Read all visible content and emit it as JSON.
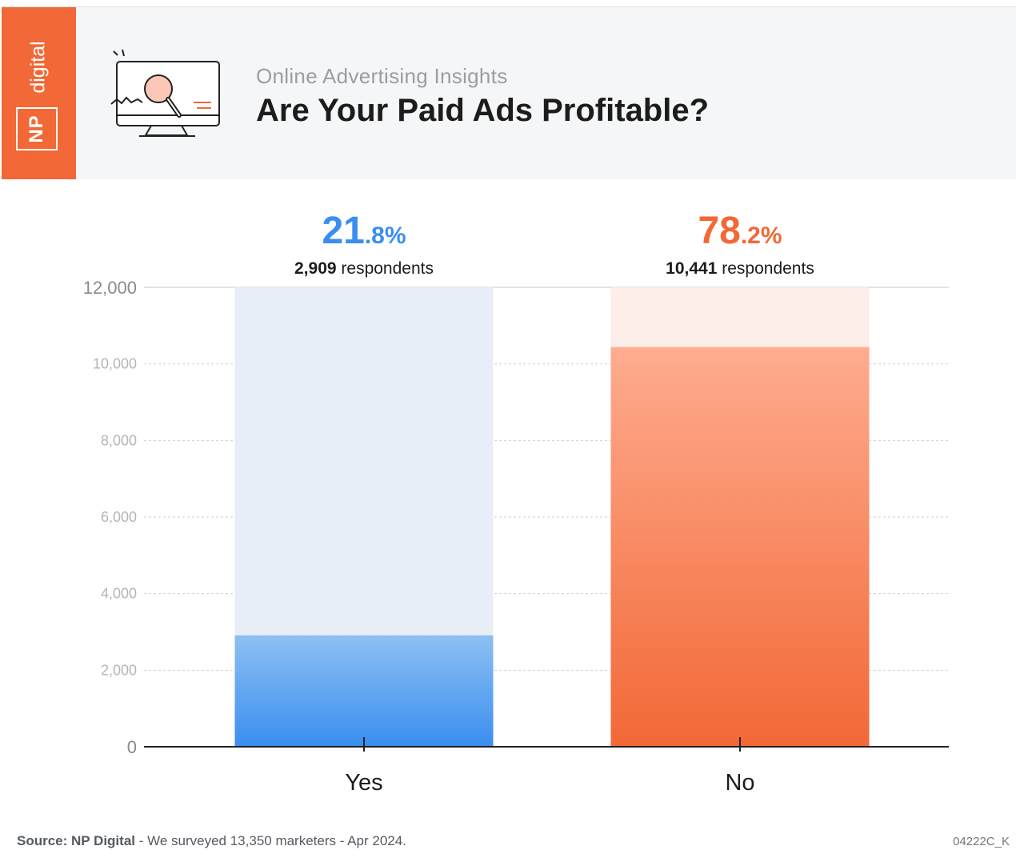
{
  "header": {
    "brand_np": "NP",
    "brand_digital": "digital",
    "subtitle": "Online Advertising Insights",
    "title": "Are Your Paid Ads Profitable?"
  },
  "chart_data": {
    "type": "bar",
    "categories": [
      "Yes",
      "No"
    ],
    "values": [
      2909,
      10441
    ],
    "percent_labels": [
      {
        "main": "21",
        "decimal": ".8%"
      },
      {
        "main": "78",
        "decimal": ".2%"
      }
    ],
    "count_labels": [
      {
        "number": "2,909",
        "suffix": " respondents"
      },
      {
        "number": "10,441",
        "suffix": " respondents"
      }
    ],
    "ylim": [
      0,
      12000
    ],
    "yticks": [
      0,
      2000,
      4000,
      6000,
      8000,
      10000,
      12000
    ],
    "ytick_labels": [
      "0",
      "2,000",
      "4,000",
      "6,000",
      "8,000",
      "10,000",
      "12,000"
    ],
    "grid": true,
    "colors": {
      "yes": "#3a8ef0",
      "yes_light": "#8dc0f2",
      "yes_bg": "#e8eef7",
      "no": "#f26836",
      "no_light": "#feac8f",
      "no_bg": "#feeeea",
      "yes_label": "#3a8ef0",
      "no_label": "#f26836"
    }
  },
  "footer": {
    "source_label": "Source: NP Digital",
    "source_text": " - We surveyed 13,350 marketers - Apr 2024.",
    "code": "04222C_K"
  }
}
